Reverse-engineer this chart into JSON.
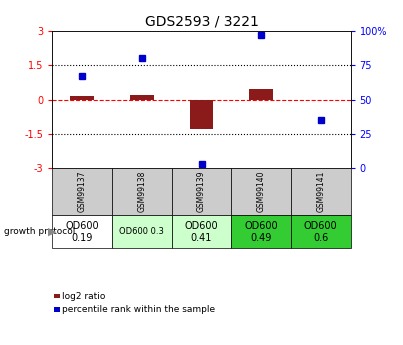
{
  "title": "GDS2593 / 3221",
  "samples": [
    "GSM99137",
    "GSM99138",
    "GSM99139",
    "GSM99140",
    "GSM99141"
  ],
  "log2_ratio": [
    0.15,
    0.2,
    -1.3,
    0.45,
    0.0
  ],
  "percentile_rank": [
    67,
    80,
    3,
    97,
    35
  ],
  "bar_color": "#8B1a1a",
  "dot_color": "#0000CC",
  "growth_protocol": [
    "OD600\n0.19",
    "OD600 0.3",
    "OD600\n0.41",
    "OD600\n0.49",
    "OD600\n0.6"
  ],
  "cell_colors": [
    "#ffffff",
    "#ccffcc",
    "#ccffcc",
    "#33cc33",
    "#33cc33"
  ],
  "cell_fontsize": [
    7,
    6,
    7,
    7,
    7
  ],
  "header_color": "#cccccc",
  "legend_red": "log2 ratio",
  "legend_blue": "percentile rank within the sample"
}
